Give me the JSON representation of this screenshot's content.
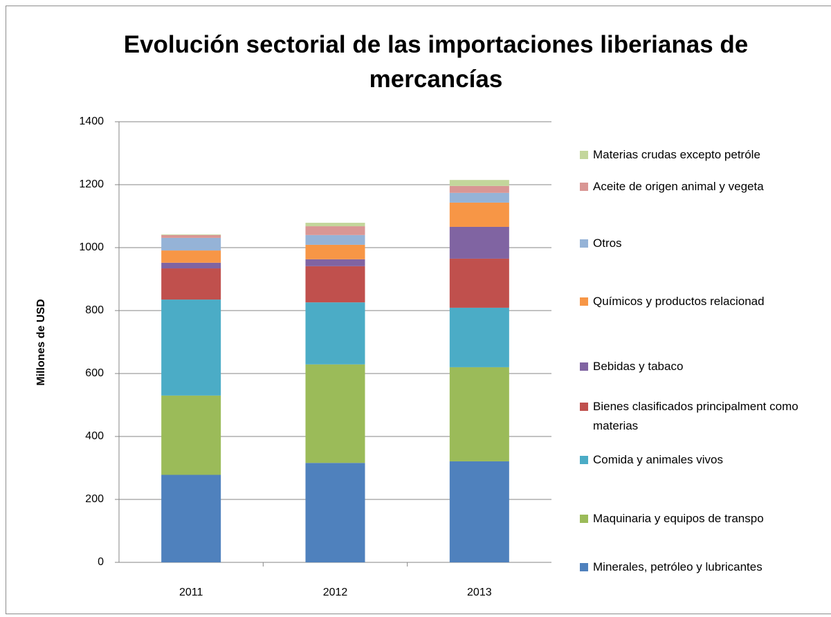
{
  "chart_data": {
    "type": "stacked_bar",
    "title": "Evolución sectorial de las importaciones liberianas de mercancías",
    "ylabel": "Millones de USD",
    "categories": [
      "2011",
      "2012",
      "2013"
    ],
    "series": [
      {
        "name": "Minerales, petróleo y lubricantes",
        "color": "#4f81bd",
        "values": [
          278,
          316,
          321
        ]
      },
      {
        "name": "Maquinaria y equipos de transpo",
        "color": "#9bbb59",
        "values": [
          252,
          313,
          299
        ]
      },
      {
        "name": "Comida y animales  vivos",
        "color": "#4bacc6",
        "values": [
          305,
          197,
          189
        ]
      },
      {
        "name": "Bienes clasificados principalment como materias",
        "color": "#c0504d",
        "values": [
          99,
          115,
          156
        ]
      },
      {
        "name": "Bebidas y tabaco",
        "color": "#8064a2",
        "values": [
          18,
          22,
          101
        ]
      },
      {
        "name": "Químicos y productos relacionad",
        "color": "#f79646",
        "values": [
          39,
          46,
          77
        ]
      },
      {
        "name": "Otros",
        "color": "#95b3d7",
        "values": [
          40,
          31,
          31
        ]
      },
      {
        "name": "Aceite de origen animal  y vegeta",
        "color": "#d99694",
        "values": [
          9,
          28,
          22
        ]
      },
      {
        "name": "Materias crudas excepto petróle",
        "color": "#c3d69b",
        "values": [
          2,
          11,
          19
        ]
      }
    ],
    "ylim": [
      0,
      1400
    ],
    "yticks": [
      0,
      200,
      400,
      600,
      800,
      1000,
      1200,
      1400
    ],
    "grid": true
  }
}
